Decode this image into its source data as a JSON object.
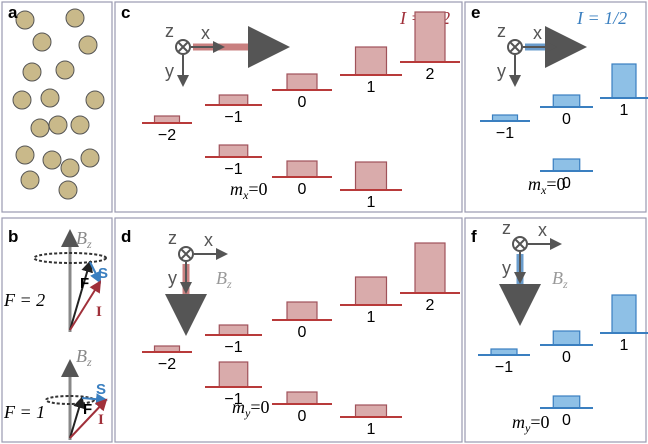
{
  "panel_labels": [
    "a",
    "b",
    "c",
    "d",
    "e",
    "f"
  ],
  "panel_b": {
    "field_labels": [
      {
        "main": "B",
        "sub": "z"
      },
      {
        "main": "B",
        "sub": "z"
      }
    ],
    "states": [
      "F = 2",
      "F = 1"
    ],
    "vectors": [
      "F",
      "S",
      "I",
      "F",
      "S",
      "I"
    ]
  },
  "panel_c": {
    "spin": "I = 3/2",
    "axes": [
      "z",
      "x",
      "y"
    ],
    "top_levels": [
      "−2",
      "−1",
      "0",
      "1",
      "2"
    ],
    "bottom_levels": [
      "−1",
      "0",
      "1"
    ],
    "basis": {
      "main": "m",
      "sub": "x",
      "rest": "=0"
    }
  },
  "panel_d": {
    "axes": [
      "z",
      "x",
      "y"
    ],
    "field": {
      "main": "B",
      "sub": "z"
    },
    "top_levels": [
      "−2",
      "−1",
      "0",
      "1",
      "2"
    ],
    "bottom_levels": [
      "−1",
      "0",
      "1"
    ],
    "basis": {
      "main": "m",
      "sub": "y",
      "rest": "=0"
    }
  },
  "panel_e": {
    "spin": "I = 1/2",
    "axes": [
      "z",
      "x",
      "y"
    ],
    "top_levels": [
      "−1",
      "0",
      "1"
    ],
    "bottom_levels": [
      "0"
    ],
    "basis": {
      "main": "m",
      "sub": "x",
      "rest": "=0"
    }
  },
  "panel_f": {
    "axes": [
      "z",
      "x",
      "y"
    ],
    "field": {
      "main": "B",
      "sub": "z"
    },
    "top_levels": [
      "−1",
      "0",
      "1"
    ],
    "bottom_levels": [
      "0"
    ],
    "basis": {
      "main": "m",
      "sub": "y",
      "rest": "=0"
    }
  }
}
